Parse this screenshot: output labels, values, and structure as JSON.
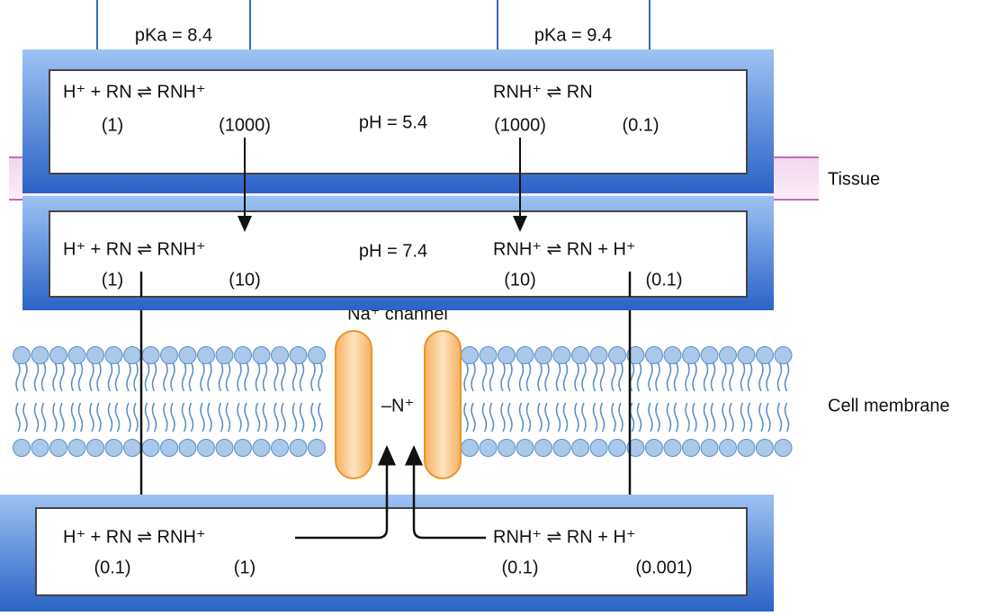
{
  "pka_labels": [
    "pKa = 8.4",
    "pKa = 9.4"
  ],
  "extracellular": {
    "left_equation": "H⁺ + RN ⇌ RNH⁺",
    "left_concentrations": [
      "(1)",
      "(1000)"
    ],
    "ph": "pH = 5.4",
    "right_equation": "RNH⁺ ⇌ RN",
    "right_concentrations": [
      "(1000)",
      "(0.1)"
    ]
  },
  "tissue_fluid": {
    "left_equation": "H⁺ + RN ⇌ RNH⁺",
    "left_concentrations": [
      "(1)",
      "(10)"
    ],
    "ph": "pH = 7.4",
    "right_equation": "RNH⁺ ⇌ RN + H⁺",
    "right_concentrations": [
      "(10)",
      "(0.1)"
    ]
  },
  "intracellular": {
    "left_equation": "H⁺ + RN ⇌ RNH⁺",
    "left_concentrations": [
      "(0.1)",
      "(1)"
    ],
    "right_equation": "RNH⁺ ⇌ RN + H⁺",
    "right_concentrations": [
      "(0.1)",
      "(0.001)"
    ]
  },
  "labels": {
    "tissue": "Tissue",
    "cell_membrane": "Cell membrane",
    "channel": "Na⁺ channel",
    "receptor": "–N⁺"
  }
}
